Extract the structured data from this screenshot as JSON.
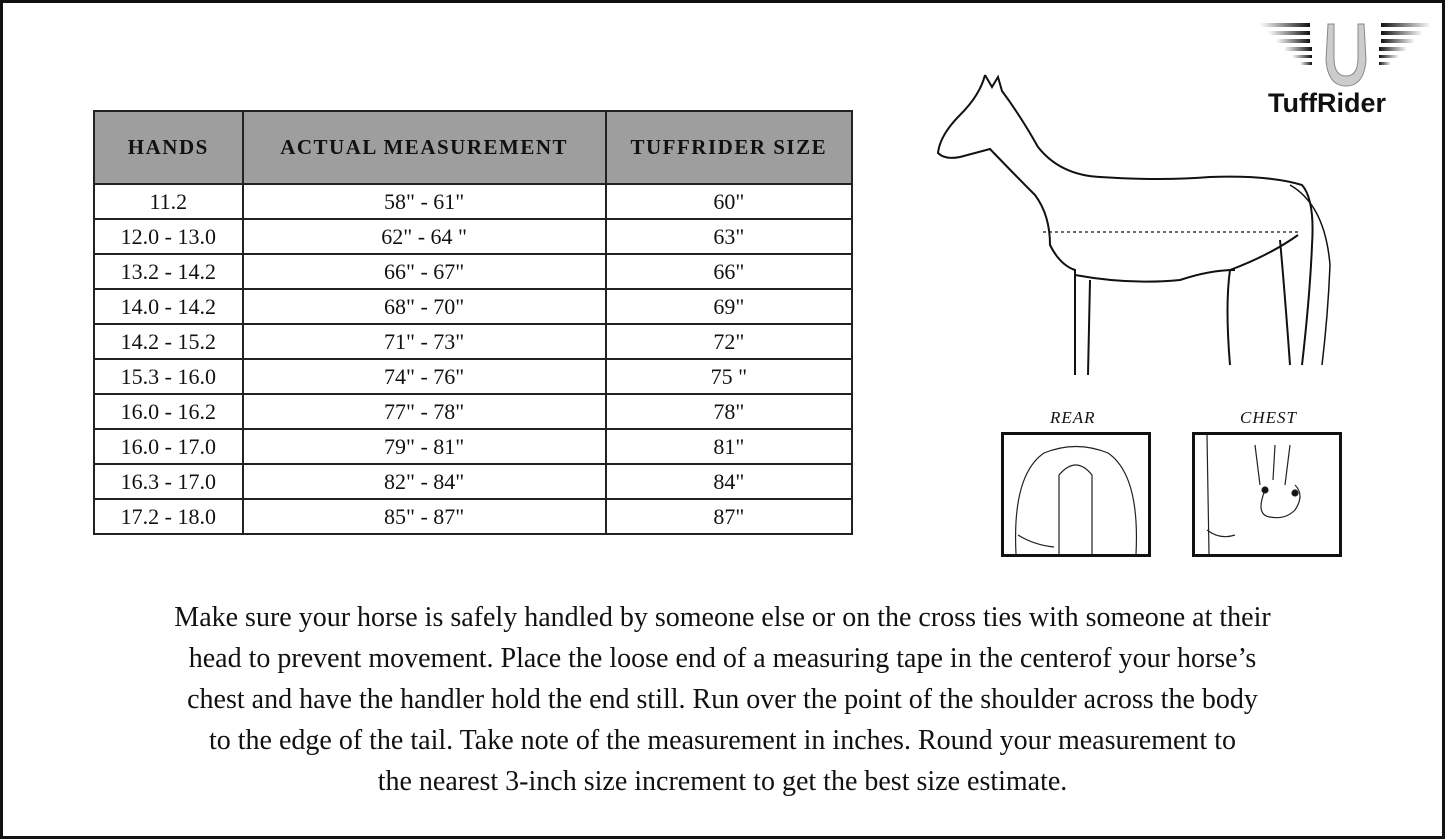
{
  "brand": {
    "name": "TuffRider"
  },
  "table": {
    "headers": [
      "HANDS",
      "ACTUAL MEASUREMENT",
      "TUFFRIDER SIZE"
    ],
    "rows": [
      [
        "11.2",
        "58\" - 61\"",
        "60\""
      ],
      [
        "12.0 - 13.0",
        "62\" - 64 \"",
        "63\""
      ],
      [
        "13.2 - 14.2",
        "66\" - 67\"",
        "66\""
      ],
      [
        "14.0 - 14.2",
        "68\" - 70\"",
        "69\""
      ],
      [
        "14.2 - 15.2",
        "71\" - 73\"",
        "72\""
      ],
      [
        "15.3 - 16.0",
        "74\" - 76\"",
        "75 \""
      ],
      [
        "16.0 - 16.2",
        "77\" - 78\"",
        "78\""
      ],
      [
        "16.0 - 17.0",
        "79\" - 81\"",
        "81\""
      ],
      [
        "16.3 - 17.0",
        "82\" - 84\"",
        "84\""
      ],
      [
        "17.2 - 18.0",
        "85\" - 87\"",
        "87\""
      ]
    ],
    "header_color": "#9e9e9e"
  },
  "diagram": {
    "rear_label": "REAR",
    "chest_label": "CHEST"
  },
  "instructions": [
    "Make sure your horse is safely handled by someone else or on the cross ties with someone at their",
    "head to prevent movement. Place the loose end of a measuring tape in the centerof your horse’s",
    "chest and have the handler hold the end still. Run over the point of the shoulder across the body",
    "to the edge of the tail. Take note of the measurement in inches. Round your measurement to",
    "the nearest 3-inch size increment to get the best size estimate."
  ]
}
